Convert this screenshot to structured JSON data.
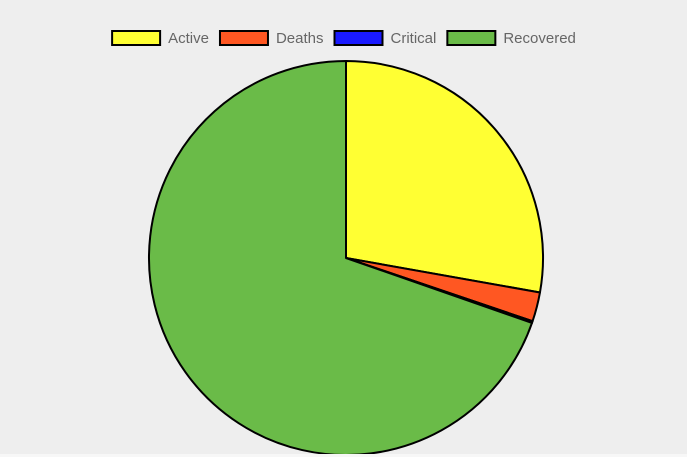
{
  "chart_data": {
    "type": "pie",
    "title": "",
    "legend_position": "top",
    "start_angle_deg": -90,
    "direction": "clockwise",
    "border_color": "#000000",
    "series": [
      {
        "name": "Active",
        "value": 27.8,
        "color": "#ffff33"
      },
      {
        "name": "Deaths",
        "value": 2.4,
        "color": "#ff5722"
      },
      {
        "name": "Critical",
        "value": 0.15,
        "color": "#1a1aff"
      },
      {
        "name": "Recovered",
        "value": 69.65,
        "color": "#6abb48"
      }
    ]
  },
  "legend": {
    "text_color": "#666666"
  }
}
